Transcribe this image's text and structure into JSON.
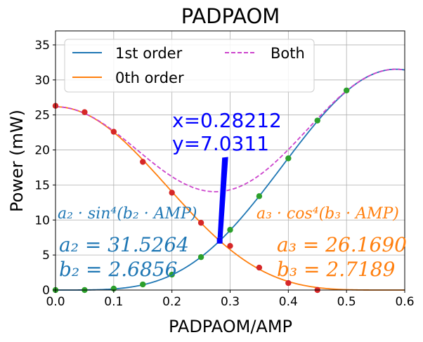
{
  "chart_data": {
    "type": "line",
    "title": "PADPAOM",
    "xlabel": "PADPAOM/AMP",
    "ylabel": "Power (mW)",
    "xlim": [
      0,
      0.6
    ],
    "ylim": [
      0,
      37
    ],
    "xticks": [
      "0.0",
      "0.1",
      "0.2",
      "0.3",
      "0.4",
      "0.5",
      "0.6"
    ],
    "yticks": [
      "0",
      "5",
      "10",
      "15",
      "20",
      "25",
      "30",
      "35"
    ],
    "grid": true,
    "legend_position": "top-left",
    "series": [
      {
        "name": "1st order",
        "color": "#1f77b4",
        "style": "solid",
        "fit": {
          "func": "sin4",
          "a": 31.5264,
          "b": 2.6856
        }
      },
      {
        "name": "0th order",
        "color": "#ff7f0e",
        "style": "solid",
        "fit": {
          "func": "cos4",
          "a": 26.169,
          "b": 2.7189
        }
      },
      {
        "name": "Both",
        "color": "#cc44cc",
        "style": "dashed",
        "fit": {
          "func": "sum"
        }
      }
    ],
    "measured_points": {
      "x": [
        0,
        0.05,
        0.1,
        0.15,
        0.2,
        0.25,
        0.3,
        0.35,
        0.4,
        0.45,
        0.5
      ],
      "red": [
        26.3,
        25.4,
        22.6,
        18.3,
        13.9,
        9.6,
        6.3,
        3.2,
        1.0,
        0.0,
        null
      ],
      "green": [
        0.0,
        0.0,
        0.2,
        0.8,
        2.2,
        4.7,
        8.6,
        13.4,
        18.8,
        24.2,
        28.5
      ],
      "red_color": "#d62728",
      "green_color": "#2ca02c"
    },
    "intersection": {
      "x": 0.28212,
      "y": 7.0311,
      "x_label": "x=0.28212",
      "y_label": "y=7.0311"
    },
    "annotations": {
      "formula_1st": "a₂ · sin⁴(b₂ · AMP)",
      "formula_0th": "a₃ · cos⁴(b₃ · AMP)",
      "a2_label": "a₂ = 31.5264",
      "b2_label": "b₂ = 2.6856",
      "a3_label": "a₃ = 26.1690",
      "b3_label": "b₃ = 2.7189"
    }
  }
}
